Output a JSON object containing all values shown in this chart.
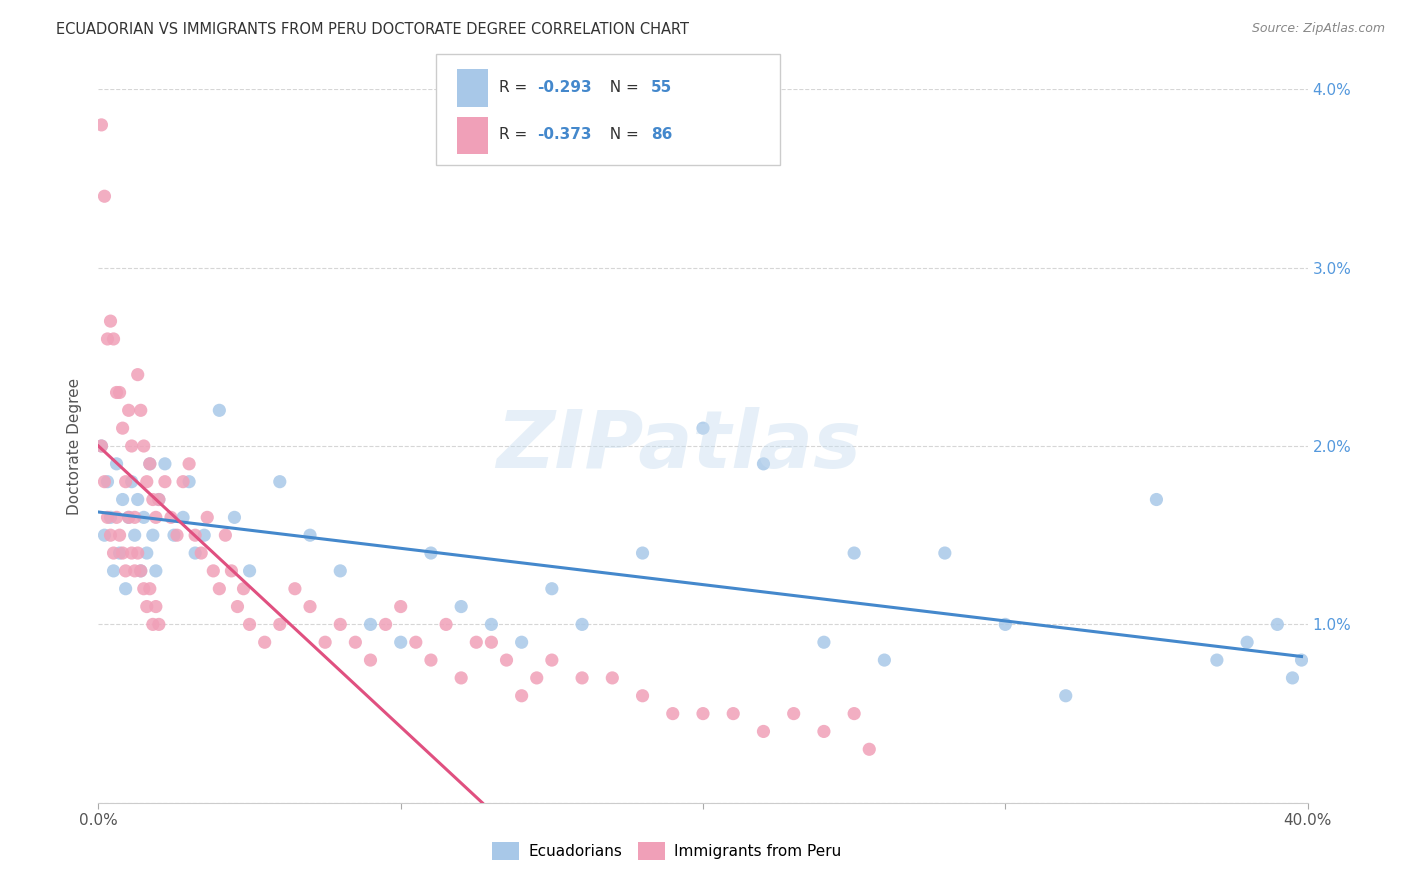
{
  "title": "ECUADORIAN VS IMMIGRANTS FROM PERU DOCTORATE DEGREE CORRELATION CHART",
  "source": "Source: ZipAtlas.com",
  "ylabel": "Doctorate Degree",
  "watermark": "ZIPatlas",
  "xlim": [
    0.0,
    0.4
  ],
  "ylim": [
    0.0,
    0.04
  ],
  "xticks": [
    0.0,
    0.1,
    0.2,
    0.3,
    0.4
  ],
  "xticklabels": [
    "0.0%",
    "",
    "",
    "",
    "40.0%"
  ],
  "yticks": [
    0.0,
    0.01,
    0.02,
    0.03,
    0.04
  ],
  "yticklabels_right": [
    "",
    "1.0%",
    "2.0%",
    "3.0%",
    "4.0%"
  ],
  "legend_labels": [
    "Ecuadorians",
    "Immigrants from Peru"
  ],
  "blue_color": "#a8c8e8",
  "pink_color": "#f0a0b8",
  "blue_line_color": "#4488cc",
  "pink_line_color": "#e05080",
  "R_blue": -0.293,
  "N_blue": 55,
  "R_pink": -0.373,
  "N_pink": 86,
  "blue_x": [
    0.001,
    0.002,
    0.003,
    0.004,
    0.005,
    0.006,
    0.007,
    0.008,
    0.009,
    0.01,
    0.011,
    0.012,
    0.013,
    0.014,
    0.015,
    0.016,
    0.017,
    0.018,
    0.019,
    0.02,
    0.022,
    0.025,
    0.028,
    0.03,
    0.032,
    0.035,
    0.04,
    0.045,
    0.05,
    0.06,
    0.07,
    0.08,
    0.09,
    0.1,
    0.11,
    0.12,
    0.13,
    0.14,
    0.15,
    0.16,
    0.18,
    0.2,
    0.22,
    0.24,
    0.25,
    0.26,
    0.28,
    0.3,
    0.32,
    0.35,
    0.37,
    0.38,
    0.39,
    0.395,
    0.398
  ],
  "blue_y": [
    0.02,
    0.015,
    0.018,
    0.016,
    0.013,
    0.019,
    0.014,
    0.017,
    0.012,
    0.016,
    0.018,
    0.015,
    0.017,
    0.013,
    0.016,
    0.014,
    0.019,
    0.015,
    0.013,
    0.017,
    0.019,
    0.015,
    0.016,
    0.018,
    0.014,
    0.015,
    0.022,
    0.016,
    0.013,
    0.018,
    0.015,
    0.013,
    0.01,
    0.009,
    0.014,
    0.011,
    0.01,
    0.009,
    0.012,
    0.01,
    0.014,
    0.021,
    0.019,
    0.009,
    0.014,
    0.008,
    0.014,
    0.01,
    0.006,
    0.017,
    0.008,
    0.009,
    0.01,
    0.007,
    0.008
  ],
  "pink_x": [
    0.001,
    0.001,
    0.002,
    0.002,
    0.003,
    0.003,
    0.004,
    0.004,
    0.005,
    0.005,
    0.006,
    0.006,
    0.007,
    0.007,
    0.008,
    0.008,
    0.009,
    0.009,
    0.01,
    0.01,
    0.011,
    0.011,
    0.012,
    0.012,
    0.013,
    0.013,
    0.014,
    0.014,
    0.015,
    0.015,
    0.016,
    0.016,
    0.017,
    0.017,
    0.018,
    0.018,
    0.019,
    0.019,
    0.02,
    0.02,
    0.022,
    0.024,
    0.026,
    0.028,
    0.03,
    0.032,
    0.034,
    0.036,
    0.038,
    0.04,
    0.042,
    0.044,
    0.046,
    0.048,
    0.05,
    0.055,
    0.06,
    0.065,
    0.07,
    0.075,
    0.08,
    0.085,
    0.09,
    0.095,
    0.1,
    0.105,
    0.11,
    0.115,
    0.12,
    0.125,
    0.13,
    0.135,
    0.14,
    0.145,
    0.15,
    0.16,
    0.17,
    0.18,
    0.19,
    0.2,
    0.21,
    0.22,
    0.23,
    0.24,
    0.25,
    0.255
  ],
  "pink_y": [
    0.038,
    0.02,
    0.034,
    0.018,
    0.026,
    0.016,
    0.027,
    0.015,
    0.026,
    0.014,
    0.023,
    0.016,
    0.023,
    0.015,
    0.021,
    0.014,
    0.018,
    0.013,
    0.022,
    0.016,
    0.02,
    0.014,
    0.016,
    0.013,
    0.024,
    0.014,
    0.022,
    0.013,
    0.02,
    0.012,
    0.018,
    0.011,
    0.019,
    0.012,
    0.017,
    0.01,
    0.016,
    0.011,
    0.017,
    0.01,
    0.018,
    0.016,
    0.015,
    0.018,
    0.019,
    0.015,
    0.014,
    0.016,
    0.013,
    0.012,
    0.015,
    0.013,
    0.011,
    0.012,
    0.01,
    0.009,
    0.01,
    0.012,
    0.011,
    0.009,
    0.01,
    0.009,
    0.008,
    0.01,
    0.011,
    0.009,
    0.008,
    0.01,
    0.007,
    0.009,
    0.009,
    0.008,
    0.006,
    0.007,
    0.008,
    0.007,
    0.007,
    0.006,
    0.005,
    0.005,
    0.005,
    0.004,
    0.005,
    0.004,
    0.005,
    0.003
  ],
  "blue_line_start_x": 0.0,
  "blue_line_end_x": 0.398,
  "blue_line_start_y": 0.0163,
  "blue_line_end_y": 0.0082,
  "pink_line_start_x": 0.0,
  "pink_line_end_x": 0.127,
  "pink_line_start_y": 0.02,
  "pink_line_end_y": 0.0
}
